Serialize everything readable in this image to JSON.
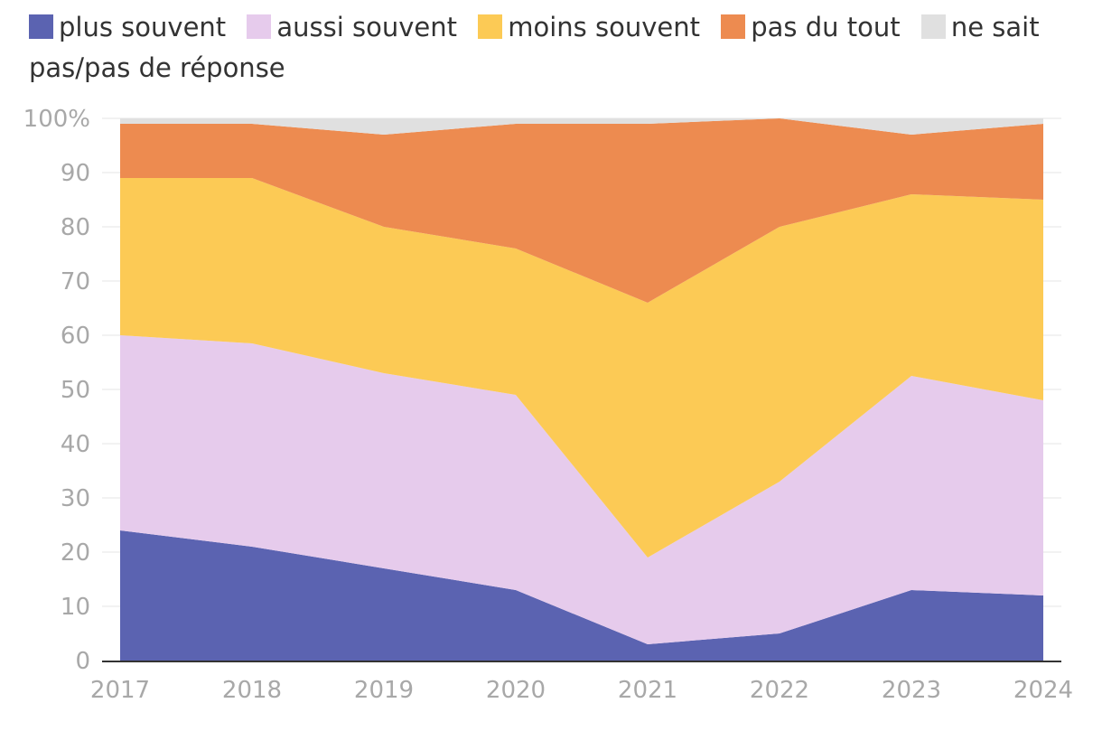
{
  "chart_data": {
    "type": "area",
    "stacked": true,
    "title": "",
    "xlabel": "",
    "ylabel": "",
    "ylim": [
      0,
      100
    ],
    "yticks": [
      "0",
      "10",
      "20",
      "30",
      "40",
      "50",
      "60",
      "70",
      "80",
      "90",
      "100%"
    ],
    "categories": [
      "2017",
      "2018",
      "2019",
      "2020",
      "2021",
      "2022",
      "2023",
      "2024"
    ],
    "legend_position": "top-left",
    "grid": true,
    "series": [
      {
        "key": "plus",
        "name": "plus souvent",
        "color": "#5b63b1",
        "values": [
          24,
          21,
          17,
          13,
          3,
          5,
          13,
          12
        ]
      },
      {
        "key": "aussi",
        "name": "aussi souvent",
        "color": "#e6cbec",
        "values": [
          36,
          37.5,
          36,
          36,
          16,
          28,
          39.5,
          36
        ]
      },
      {
        "key": "moins",
        "name": "moins souvent",
        "color": "#fcca55",
        "values": [
          29,
          30.5,
          27,
          27,
          47,
          47,
          33.5,
          37
        ]
      },
      {
        "key": "pasdutout",
        "name": "pas du tout",
        "color": "#ed8b50",
        "values": [
          10,
          10,
          17,
          23,
          33,
          20,
          11,
          14
        ]
      },
      {
        "key": "nsp",
        "name": "ne sait pas/pas de réponse",
        "color": "#e0e0e0",
        "values": [
          1,
          1,
          3,
          1,
          1,
          0,
          3,
          1
        ]
      }
    ]
  }
}
